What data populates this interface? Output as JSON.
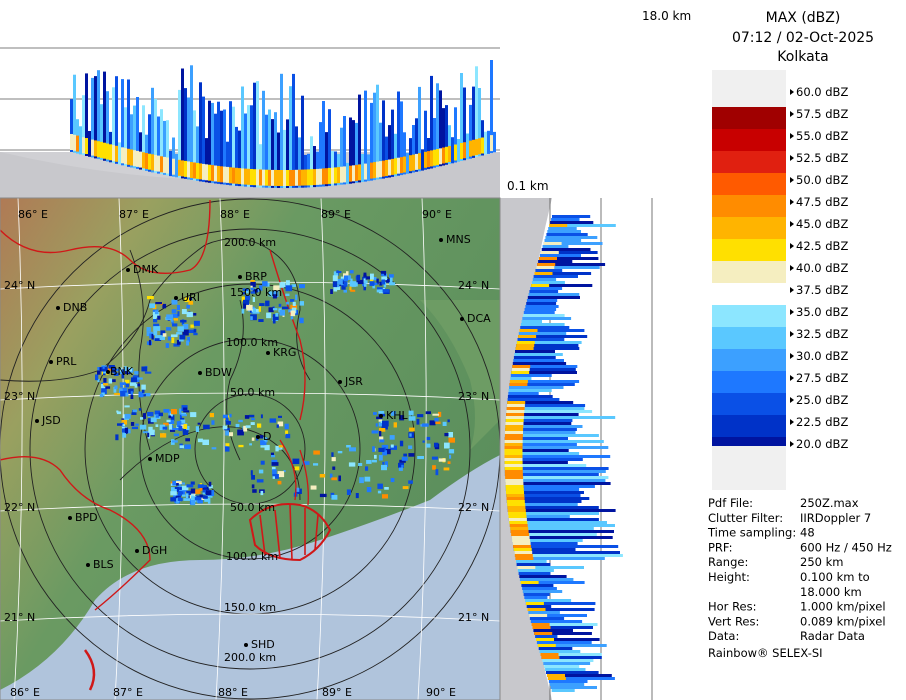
{
  "header": {
    "product": "MAX (dBZ)",
    "datetime": "07:12 / 02-Oct-2025",
    "station": "Kolkata"
  },
  "top_profile": {
    "height_label": "18.0 km"
  },
  "side_profile": {
    "height_label": "0.1 km"
  },
  "legend": {
    "entries": [
      {
        "label": "60.0 dBZ",
        "color": "#ffffff"
      },
      {
        "label": "57.5 dBZ",
        "color": "#a00000"
      },
      {
        "label": "55.0 dBZ",
        "color": "#c80000"
      },
      {
        "label": "52.5 dBZ",
        "color": "#e02010"
      },
      {
        "label": "50.0 dBZ",
        "color": "#ff5a00"
      },
      {
        "label": "47.5 dBZ",
        "color": "#ff8c00"
      },
      {
        "label": "45.0 dBZ",
        "color": "#ffb400"
      },
      {
        "label": "42.5 dBZ",
        "color": "#ffe000"
      },
      {
        "label": "40.0 dBZ",
        "color": "#f5eec0"
      },
      {
        "label": "37.5 dBZ",
        "color": "#ffffff"
      },
      {
        "label": "35.0 dBZ",
        "color": "#8ce6ff"
      },
      {
        "label": "32.5 dBZ",
        "color": "#5ac8ff"
      },
      {
        "label": "30.0 dBZ",
        "color": "#3ca0ff"
      },
      {
        "label": "27.5 dBZ",
        "color": "#1e78ff"
      },
      {
        "label": "25.0 dBZ",
        "color": "#0a50e6"
      },
      {
        "label": "22.5 dBZ",
        "color": "#0032c8"
      },
      {
        "label": "20.0 dBZ",
        "color": "#0014a0"
      }
    ]
  },
  "info": [
    {
      "key": "Pdf File:",
      "value": "250Z.max"
    },
    {
      "key": "Clutter Filter:",
      "value": "IIRDoppler 7"
    },
    {
      "key": "Time sampling:",
      "value": "48"
    },
    {
      "key": "PRF:",
      "value": "600 Hz / 450 Hz"
    },
    {
      "key": "Range:",
      "value": "250 km"
    },
    {
      "key": "Height:",
      "value": "0.100 km to"
    },
    {
      "key": "",
      "value": "18.000 km"
    },
    {
      "key": "Hor Res:",
      "value": "1.000 km/pixel"
    },
    {
      "key": "Vert Res:",
      "value": "0.089 km/pixel"
    },
    {
      "key": "Data:",
      "value": "Radar Data"
    }
  ],
  "footer": "Rainbow® SELEX-SI",
  "map": {
    "lon_labels": [
      "86° E",
      "87° E",
      "88° E",
      "89° E",
      "90° E"
    ],
    "lat_labels": [
      "24° N",
      "23° N",
      "22° N",
      "21° N"
    ],
    "range_rings": [
      "50.0 km",
      "100.0 km",
      "150.0 km",
      "200.0 km"
    ],
    "places": [
      "MNS",
      "DMK",
      "BRP",
      "DNB",
      "URI",
      "DCA",
      "PRL",
      "BNK",
      "BDW",
      "KRG",
      "JSR",
      "KHL",
      "JSD",
      "MDP",
      "D",
      "BPD",
      "DGH",
      "BLS",
      "SHD"
    ]
  },
  "colors": {
    "land_green": "#6a9a62",
    "sea": "#b0c4dc",
    "frame_gray": "#c8c8cc",
    "boundary_red": "#d01818"
  }
}
